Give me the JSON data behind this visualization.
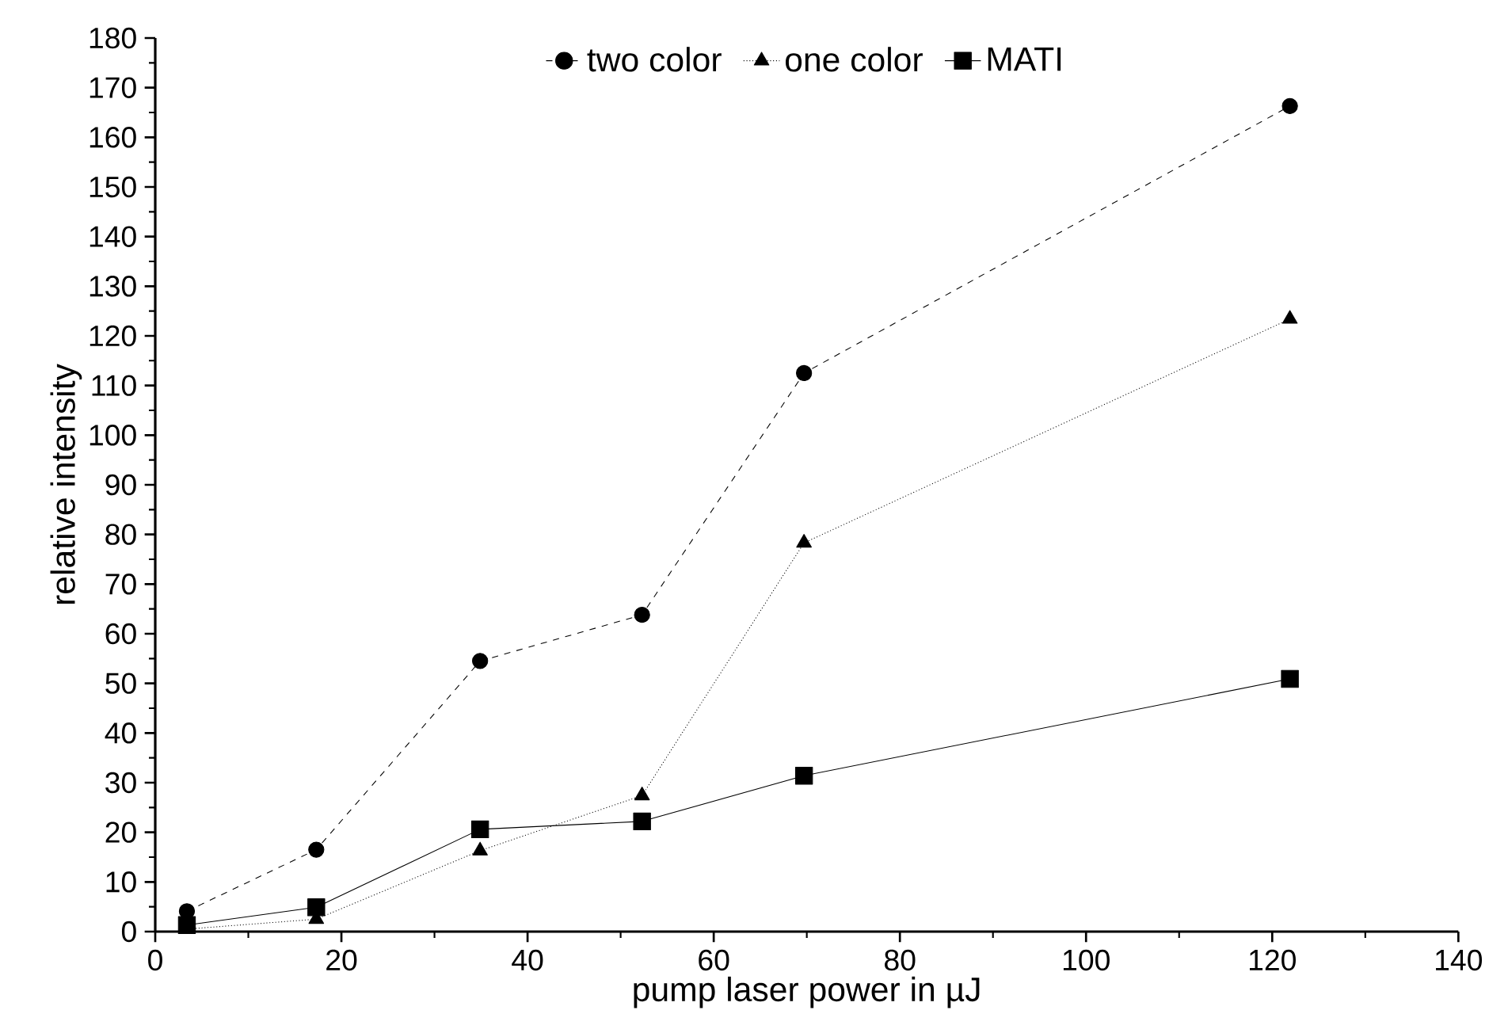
{
  "chart_data": {
    "type": "line",
    "xlabel": "pump laser power in µJ",
    "ylabel": "relative intensity",
    "xlim": [
      0,
      140
    ],
    "ylim": [
      0,
      180
    ],
    "xticks": [
      0,
      20,
      40,
      60,
      80,
      100,
      120,
      140
    ],
    "yticks": [
      0,
      10,
      20,
      30,
      40,
      50,
      60,
      70,
      80,
      90,
      100,
      110,
      120,
      130,
      140,
      150,
      160,
      170,
      180
    ],
    "legend": "top",
    "grid": false,
    "series": [
      {
        "name": "two color",
        "color": "#000000",
        "marker": "circle",
        "line_style": "dashed",
        "x": [
          3.4,
          17.3,
          34.9,
          52.3,
          69.7,
          121.9
        ],
        "values": [
          4.1,
          16.5,
          54.5,
          63.8,
          112.5,
          166.3
        ]
      },
      {
        "name": "one color",
        "color": "#000000",
        "marker": "triangle",
        "line_style": "dotted",
        "x": [
          3.4,
          17.3,
          34.9,
          52.3,
          69.7,
          121.9
        ],
        "values": [
          0.5,
          2.5,
          16.3,
          27.4,
          78.3,
          123.4
        ]
      },
      {
        "name": "MATI",
        "color": "#000000",
        "marker": "square",
        "line_style": "solid",
        "x": [
          3.4,
          17.3,
          34.9,
          52.3,
          69.7,
          121.9
        ],
        "values": [
          1.3,
          4.9,
          20.6,
          22.2,
          31.4,
          50.9
        ]
      }
    ]
  }
}
